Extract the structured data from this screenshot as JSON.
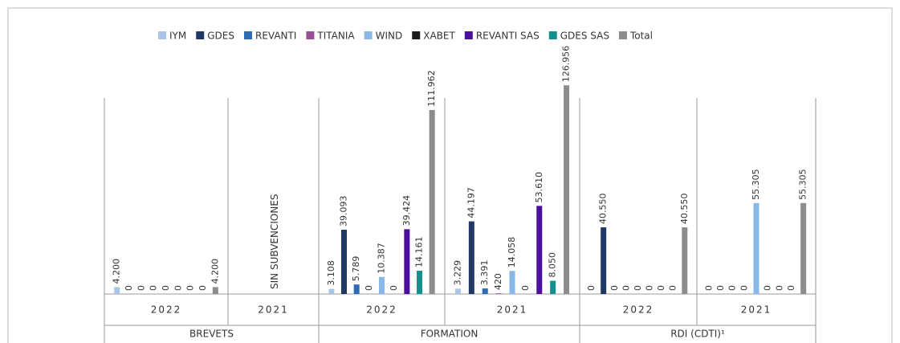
{
  "chart_data": {
    "type": "bar",
    "groups": [
      {
        "label": "BREVETS",
        "categories": [
          "2022",
          "2021"
        ]
      },
      {
        "label": "FORMATION",
        "categories": [
          "2022",
          "2021"
        ]
      },
      {
        "label": "RDI (CDTI)¹",
        "categories": [
          "2022",
          "2021"
        ]
      }
    ],
    "annotation": "SIN SUBVENCIONES",
    "ylim": [
      0,
      130000
    ],
    "series": [
      {
        "name": "IYM",
        "color": "#a9c6e6",
        "values": [
          4200,
          null,
          3108,
          3229,
          0,
          0
        ],
        "value_labels": [
          "4.200",
          null,
          "3.108",
          "3.229",
          "0",
          "0"
        ]
      },
      {
        "name": "GDES",
        "color": "#1f3864",
        "values": [
          0,
          null,
          39093,
          44197,
          40550,
          0
        ],
        "value_labels": [
          "0",
          null,
          "39.093",
          "44.197",
          "40.550",
          "0"
        ]
      },
      {
        "name": "REVANTI",
        "color": "#2e6db4",
        "values": [
          0,
          null,
          5789,
          3391,
          0,
          0
        ],
        "value_labels": [
          "0",
          null,
          "5.789",
          "3.391",
          "0",
          "0"
        ]
      },
      {
        "name": "TITANIA",
        "color": "#9b4f96",
        "values": [
          0,
          null,
          0,
          420,
          0,
          0
        ],
        "value_labels": [
          "0",
          null,
          "0",
          "420",
          "0",
          "0"
        ]
      },
      {
        "name": "WIND",
        "color": "#8ab8e6",
        "values": [
          0,
          null,
          10387,
          14058,
          0,
          55305
        ],
        "value_labels": [
          "0",
          null,
          "10.387",
          "14.058",
          "0",
          "55.305"
        ]
      },
      {
        "name": "XABET",
        "color": "#1a1a1a",
        "values": [
          0,
          null,
          0,
          0,
          0,
          0
        ],
        "value_labels": [
          "0",
          null,
          "0",
          "0",
          "0",
          "0"
        ]
      },
      {
        "name": "REVANTI SAS",
        "color": "#4b0f9e",
        "values": [
          0,
          null,
          39424,
          53610,
          0,
          0
        ],
        "value_labels": [
          "0",
          null,
          "39.424",
          "53.610",
          "0",
          "0"
        ]
      },
      {
        "name": "GDES SAS",
        "color": "#11908f",
        "values": [
          0,
          null,
          14161,
          8050,
          0,
          0
        ],
        "value_labels": [
          "0",
          null,
          "14.161",
          "8.050",
          "0",
          "0"
        ]
      },
      {
        "name": "Total",
        "color": "#8c8c8c",
        "values": [
          4200,
          null,
          111962,
          126956,
          40550,
          55305
        ],
        "value_labels": [
          "4.200",
          null,
          "111.962",
          "126.956",
          "40.550",
          "55.305"
        ]
      }
    ]
  }
}
